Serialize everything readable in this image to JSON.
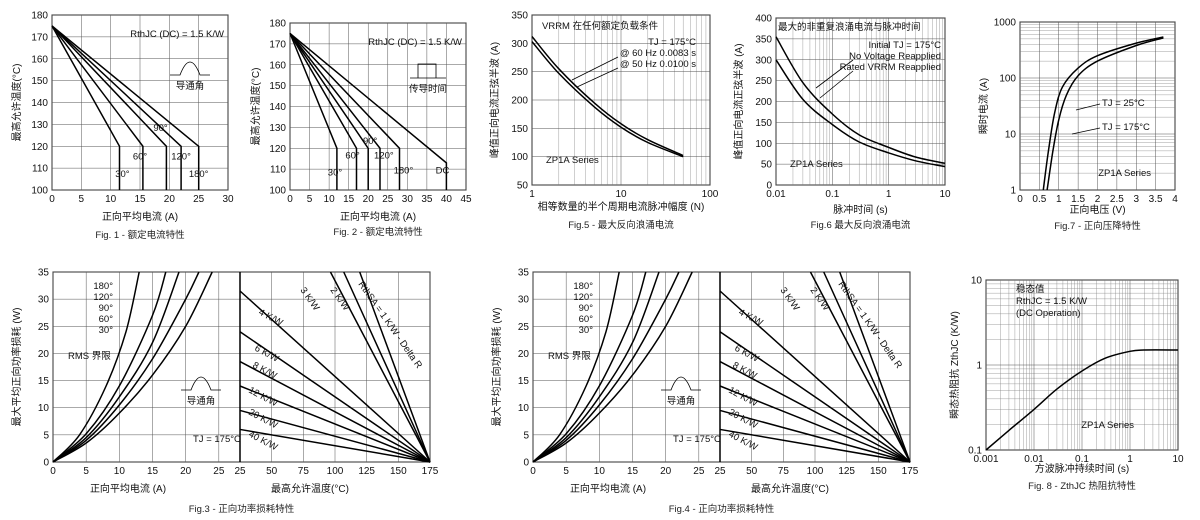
{
  "chart_data": [
    {
      "id": "fig1",
      "type": "line",
      "caption": "Fig. 1 -  额定电流特性",
      "xlabel": "正向平均电流 (A)",
      "ylabel": "最高允许温度(°C)",
      "xlim": [
        0,
        30
      ],
      "ylim": [
        100,
        180
      ],
      "xticks": [
        0,
        5,
        10,
        15,
        20,
        25,
        30
      ],
      "yticks": [
        100,
        110,
        120,
        130,
        140,
        150,
        160,
        170,
        180
      ],
      "annotation": "RthJC (DC) = 1.5 K/W",
      "inset_label": "导通角",
      "series": [
        {
          "label": "30°",
          "x": [
            0,
            11.5,
            11.5
          ],
          "y": [
            175,
            120,
            100
          ],
          "label_x": 12,
          "label_y": 106
        },
        {
          "label": "60°",
          "x": [
            0,
            15.5,
            15.5
          ],
          "y": [
            175,
            120,
            100
          ],
          "label_x": 15,
          "label_y": 114
        },
        {
          "label": "90°",
          "x": [
            0,
            19.5,
            19.5
          ],
          "y": [
            175,
            120,
            100
          ],
          "label_x": 18.5,
          "label_y": 127
        },
        {
          "label": "120°",
          "x": [
            0,
            22,
            22
          ],
          "y": [
            175,
            120,
            100
          ],
          "label_x": 22,
          "label_y": 114
        },
        {
          "label": "180°",
          "x": [
            0,
            25,
            25
          ],
          "y": [
            175,
            120,
            100
          ],
          "label_x": 25,
          "label_y": 106
        }
      ]
    },
    {
      "id": "fig2",
      "type": "line",
      "caption": "Fig. 2 -  额定电流特性",
      "xlabel": "正向平均电流 (A)",
      "ylabel": "最高允许温度(°C)",
      "xlim": [
        0,
        45
      ],
      "ylim": [
        100,
        180
      ],
      "xticks": [
        0,
        5,
        10,
        15,
        20,
        25,
        30,
        35,
        40,
        45
      ],
      "yticks": [
        100,
        110,
        120,
        130,
        140,
        150,
        160,
        170,
        180
      ],
      "annotation": "RthJC (DC) = 1.5 K/W",
      "inset_label": "传导时间",
      "series": [
        {
          "label": "30°",
          "x": [
            0,
            12,
            12
          ],
          "y": [
            175,
            120,
            100
          ],
          "label_x": 11.5,
          "label_y": 107
        },
        {
          "label": "60°",
          "x": [
            0,
            17,
            17
          ],
          "y": [
            175,
            120,
            100
          ],
          "label_x": 16,
          "label_y": 115
        },
        {
          "label": "90°",
          "x": [
            0,
            20,
            20
          ],
          "y": [
            175,
            120,
            100
          ],
          "label_x": 20.5,
          "label_y": 122
        },
        {
          "label": "120°",
          "x": [
            0,
            23,
            23
          ],
          "y": [
            175,
            120,
            100
          ],
          "label_x": 24,
          "label_y": 115
        },
        {
          "label": "180°",
          "x": [
            0,
            28,
            28
          ],
          "y": [
            175,
            120,
            100
          ],
          "label_x": 29,
          "label_y": 108
        },
        {
          "label": "DC",
          "x": [
            0,
            40,
            40
          ],
          "y": [
            175,
            113,
            100
          ],
          "label_x": 39,
          "label_y": 108
        }
      ]
    },
    {
      "id": "fig5",
      "type": "line",
      "caption": "Fig.5 -  最大反向浪涌电流",
      "xlabel": "相等数量的半个周期电流脉冲幅度 (N)",
      "ylabel": "峰值正向电流正弦半波 (A)",
      "xscale": "log",
      "xlim": [
        1,
        100
      ],
      "ylim": [
        50,
        350
      ],
      "xticks": [
        1,
        10,
        100
      ],
      "yticks": [
        50,
        100,
        150,
        200,
        250,
        300,
        350
      ],
      "title_text": "VRRM  在任何额定负载条件",
      "legend": [
        "TJ = 175°C",
        "@ 60 Hz 0.0083 s",
        "@ 50 Hz 0.0100 s"
      ],
      "series_label": "ZP1A Series",
      "series": [
        {
          "name": "@ 60 Hz 0.0083 s",
          "x": [
            1,
            2,
            5,
            10,
            20,
            50
          ],
          "y": [
            312,
            255,
            195,
            158,
            130,
            102
          ]
        },
        {
          "name": "@ 50 Hz 0.0100 s",
          "x": [
            1,
            2,
            5,
            10,
            20,
            50
          ],
          "y": [
            303,
            247,
            188,
            152,
            125,
            100
          ]
        }
      ]
    },
    {
      "id": "fig6",
      "type": "line",
      "caption": "Fig.6  最大反向浪涌电流",
      "xlabel": "脉冲时间 (s)",
      "ylabel": "峰值正向电流正弦半波 (A)",
      "xscale": "log",
      "xlim": [
        0.01,
        10
      ],
      "ylim": [
        0,
        400
      ],
      "xticks": [
        0.01,
        0.1,
        1,
        10
      ],
      "xticklabels": [
        "0.01",
        "0.1",
        "1",
        "10"
      ],
      "yticks": [
        0,
        50,
        100,
        150,
        200,
        250,
        300,
        350,
        400
      ],
      "title_text": "最大的非重复浪涌电流与脉冲时间",
      "legend": [
        "Initial TJ = 175°C",
        "No Voltage Reapplied",
        "Rated VRRM Reapplied"
      ],
      "series_label": "ZP1A Series",
      "series": [
        {
          "name": "No Voltage Reapplied",
          "x": [
            0.01,
            0.03,
            0.1,
            0.3,
            1,
            3,
            10
          ],
          "y": [
            355,
            245,
            170,
            120,
            90,
            67,
            52
          ]
        },
        {
          "name": "Rated VRRM Reapplied",
          "x": [
            0.01,
            0.03,
            0.1,
            0.3,
            1,
            3,
            10
          ],
          "y": [
            300,
            205,
            145,
            103,
            77,
            58,
            44
          ]
        }
      ]
    },
    {
      "id": "fig7",
      "type": "line",
      "caption": "Fig.7 -  正向压降特性",
      "xlabel": "正向电压 (V)",
      "ylabel": "瞬时电流 (A)",
      "yscale": "log",
      "xlim": [
        0,
        4
      ],
      "ylim": [
        1,
        1000
      ],
      "xticks": [
        0,
        0.5,
        1,
        1.5,
        2,
        2.5,
        3,
        3.5,
        4
      ],
      "yticks": [
        1,
        10,
        100,
        1000
      ],
      "legend": [
        "TJ = 25°C",
        "TJ = 175°C"
      ],
      "series_label": "ZP1A Series",
      "series": [
        {
          "name": "TJ = 25°C",
          "x": [
            0.7,
            0.85,
            1.0,
            1.2,
            1.5,
            2.0,
            3.0,
            3.7
          ],
          "y": [
            1,
            5,
            18,
            50,
            110,
            200,
            380,
            520
          ]
        },
        {
          "name": "TJ = 175°C",
          "x": [
            0.6,
            0.75,
            0.9,
            1.1,
            1.5,
            2.0,
            3.0,
            3.7
          ],
          "y": [
            1,
            6,
            25,
            70,
            150,
            250,
            420,
            540
          ]
        }
      ]
    },
    {
      "id": "fig3",
      "type": "line",
      "caption": "Fig.3 - 正向功率损耗特性",
      "xlabel": "正向平均电流 (A)",
      "xlabel2": "最高允许温度(°C)",
      "ylabel": "最大平均正向功率损耗 (W)",
      "xlim": [
        0,
        30
      ],
      "xlim2": [
        25,
        175
      ],
      "ylim": [
        0,
        35
      ],
      "xticks": [
        0,
        5,
        10,
        15,
        20,
        25
      ],
      "xticks2": [
        25,
        50,
        75,
        100,
        125,
        150,
        175
      ],
      "yticks": [
        0,
        5,
        10,
        15,
        20,
        25,
        30,
        35
      ],
      "angle_labels": [
        "180°",
        "120°",
        "90°",
        "60°",
        "30°"
      ],
      "rms_label": "RMS 界限",
      "inset_label": "导通角",
      "tj_label": "TJ = 175°C",
      "rth_labels": [
        "3 K/W",
        "2 K/W",
        "RthSA = 1 K/W - Delta R",
        "4 K/W",
        "6 K/W",
        "8 K/W",
        "12 K/W",
        "20 K/W",
        "40 K/W"
      ],
      "series": [
        {
          "label": "180°",
          "x": [
            0,
            5,
            10,
            15,
            20,
            24
          ],
          "y": [
            0,
            3.5,
            9,
            16,
            25,
            35
          ]
        },
        {
          "label": "120°",
          "x": [
            0,
            5,
            10,
            15,
            20,
            22
          ],
          "y": [
            0,
            4,
            10.5,
            19,
            30,
            35
          ]
        },
        {
          "label": "90°",
          "x": [
            0,
            5,
            10,
            15,
            19
          ],
          "y": [
            0,
            4.5,
            12,
            22,
            35
          ]
        },
        {
          "label": "60°",
          "x": [
            0,
            5,
            10,
            15,
            17
          ],
          "y": [
            0,
            5.2,
            14,
            27,
            35
          ]
        },
        {
          "label": "30°",
          "x": [
            0,
            4,
            8,
            11,
            13
          ],
          "y": [
            0,
            5,
            14,
            24,
            35
          ]
        }
      ]
    },
    {
      "id": "fig4",
      "type": "line",
      "caption": "Fig.4 - 正向功率损耗特性",
      "xlabel": "正向平均电流 (A)",
      "xlabel2": "最高允许温度(°C)",
      "ylabel": "最大平均正向功率损耗 (W)",
      "xlim": [
        0,
        30
      ],
      "xlim2": [
        25,
        175
      ],
      "ylim": [
        0,
        35
      ],
      "xticks": [
        0,
        5,
        10,
        15,
        20,
        25
      ],
      "xticks2": [
        25,
        50,
        75,
        100,
        125,
        150,
        175
      ],
      "yticks": [
        0,
        5,
        10,
        15,
        20,
        25,
        30,
        35
      ],
      "angle_labels": [
        "180°",
        "120°",
        "90°",
        "60°",
        "30°"
      ],
      "rms_label": "RMS 界限",
      "inset_label": "导通角",
      "tj_label": "TJ = 175°C",
      "rth_labels": [
        "3 K/W",
        "2 K/W",
        "RthSA = 1 K/W - Delta R",
        "4 K/W",
        "6 K/W",
        "8 K/W",
        "12 K/W",
        "20 K/W",
        "40 K/W"
      ],
      "series": [
        {
          "label": "180°",
          "x": [
            0,
            5,
            10,
            15,
            20,
            24
          ],
          "y": [
            0,
            3.5,
            9,
            16,
            25,
            35
          ]
        },
        {
          "label": "120°",
          "x": [
            0,
            5,
            10,
            15,
            20,
            22
          ],
          "y": [
            0,
            4,
            10.5,
            19,
            30,
            35
          ]
        },
        {
          "label": "90°",
          "x": [
            0,
            5,
            10,
            15,
            19
          ],
          "y": [
            0,
            4.5,
            12,
            22,
            35
          ]
        },
        {
          "label": "60°",
          "x": [
            0,
            5,
            10,
            15,
            17
          ],
          "y": [
            0,
            5.2,
            14,
            27,
            35
          ]
        },
        {
          "label": "30°",
          "x": [
            0,
            4,
            8,
            11,
            13
          ],
          "y": [
            0,
            5,
            14,
            24,
            35
          ]
        }
      ]
    },
    {
      "id": "fig8",
      "type": "line",
      "caption": "Fig. 8 - ZthJC  热阻抗特性",
      "xlabel": "方波脉冲持续时间 (s)",
      "ylabel": "瞬态热阻抗 ZthJC (K/W)",
      "xscale": "log",
      "yscale": "log",
      "xlim": [
        0.001,
        10
      ],
      "ylim": [
        0.1,
        10
      ],
      "xticks": [
        0.001,
        0.01,
        0.1,
        1,
        10
      ],
      "xticklabels": [
        "0.001",
        "0.01",
        "0.1",
        "1",
        "10"
      ],
      "yticks": [
        0.1,
        1,
        10
      ],
      "yticklabels": [
        "0.1",
        "1",
        "10"
      ],
      "legend": [
        "稳态值",
        "RthJC = 1.5 K/W",
        "(DC Operation)"
      ],
      "series_label": "ZP1A Series",
      "series": [
        {
          "name": "ZthJC",
          "x": [
            0.001,
            0.003,
            0.01,
            0.03,
            0.1,
            0.3,
            1,
            2,
            10
          ],
          "y": [
            0.1,
            0.17,
            0.3,
            0.52,
            0.85,
            1.2,
            1.45,
            1.5,
            1.5
          ]
        }
      ]
    }
  ]
}
